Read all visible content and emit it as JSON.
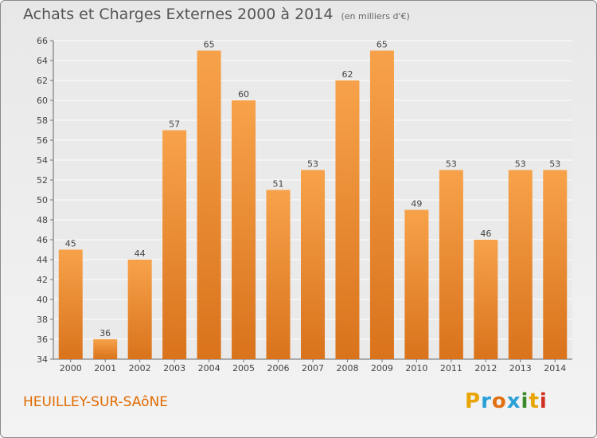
{
  "header": {
    "title": "Achats et Charges Externes 2000 à 2014",
    "subtitle": "(en milliers d'€)"
  },
  "footer": {
    "city": "HEUILLEY-SUR-SAôNE",
    "logo_letters": [
      "P",
      "r",
      "o",
      "x",
      "i",
      "t",
      "i"
    ],
    "logo_colors": [
      "#e8a400",
      "#2aa0d8",
      "#e07010",
      "#2aa0d8",
      "#3a8a2a",
      "#e8a400",
      "#d03020"
    ]
  },
  "chart_data": {
    "type": "bar",
    "title": "Achats et Charges Externes 2000 à 2014",
    "categories": [
      "2000",
      "2001",
      "2002",
      "2003",
      "2004",
      "2005",
      "2006",
      "2007",
      "2008",
      "2009",
      "2010",
      "2011",
      "2012",
      "2013",
      "2014"
    ],
    "values": [
      45,
      36,
      44,
      57,
      65,
      60,
      51,
      53,
      62,
      65,
      49,
      53,
      46,
      53,
      53
    ],
    "ylim": [
      34,
      66
    ],
    "yticks": [
      34,
      36,
      38,
      40,
      42,
      44,
      46,
      48,
      50,
      52,
      54,
      56,
      58,
      60,
      62,
      64,
      66
    ],
    "grid": true,
    "bar_color_top": "#f7a24a",
    "bar_color_bottom": "#d9731c"
  }
}
